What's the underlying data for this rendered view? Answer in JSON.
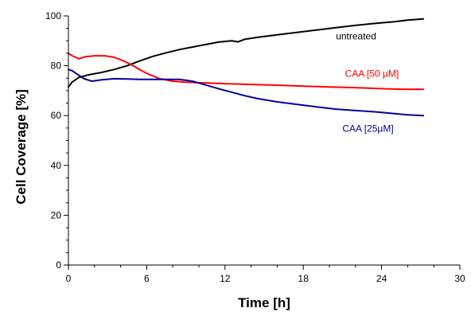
{
  "chart_data": {
    "type": "line",
    "xlabel": "Time [h]",
    "ylabel": "Cell Coverage [%]",
    "xlim": [
      0,
      30
    ],
    "ylim": [
      0,
      100
    ],
    "xticks": [
      0,
      6,
      12,
      18,
      24,
      30
    ],
    "yticks": [
      0,
      20,
      40,
      60,
      80,
      100
    ],
    "grid": false,
    "series": [
      {
        "name": "untreated",
        "color": "#000000",
        "x": [
          0,
          0.3,
          0.8,
          1.5,
          2.5,
          3.5,
          4.5,
          5.5,
          6.5,
          7.5,
          8.5,
          9.5,
          10.5,
          11.5,
          12.5,
          13.0,
          13.5,
          14.5,
          16,
          17.5,
          19,
          20.5,
          22,
          23.5,
          25,
          26,
          27.2
        ],
        "y": [
          71.5,
          73.5,
          75.3,
          76.3,
          77.3,
          78.5,
          80,
          82,
          83.8,
          85.2,
          86.5,
          87.5,
          88.5,
          89.5,
          90,
          89.6,
          90.6,
          91.4,
          92.4,
          93.4,
          94.3,
          95.3,
          96.2,
          97,
          97.7,
          98.3,
          98.8
        ]
      },
      {
        "name": "CAA [50 µM]",
        "color": "#ff0000",
        "x": [
          0,
          0.3,
          0.8,
          1.3,
          2.0,
          2.8,
          3.5,
          4.2,
          4.8,
          5.5,
          6.2,
          7,
          8,
          9,
          10,
          11,
          12,
          14,
          16,
          18,
          20,
          22,
          24,
          26,
          27.2
        ],
        "y": [
          85,
          84,
          82.8,
          83.6,
          84,
          84,
          83.4,
          82,
          80.5,
          78.3,
          76.5,
          74.8,
          73.8,
          73.4,
          73.2,
          73,
          72.8,
          72.5,
          72.2,
          71.8,
          71.5,
          71.2,
          70.8,
          70.5,
          70.5
        ]
      },
      {
        "name": "CAA [25µM]",
        "color": "#00009e",
        "x": [
          0,
          0.3,
          0.7,
          1.2,
          1.8,
          2.5,
          3.5,
          4.5,
          5.5,
          6.5,
          7.5,
          8.5,
          9.5,
          10.5,
          11.5,
          12.5,
          13.5,
          14.5,
          16,
          17.5,
          19,
          20.5,
          22,
          23.5,
          25,
          26,
          27.2
        ],
        "y": [
          78.5,
          78,
          76.5,
          74.8,
          73.8,
          74.3,
          74.8,
          74.7,
          74.5,
          74.5,
          74.5,
          74.5,
          73.8,
          72.3,
          70.8,
          69.4,
          68,
          66.8,
          65.5,
          64.5,
          63.5,
          62.6,
          62,
          61.5,
          60.8,
          60.3,
          60
        ]
      }
    ],
    "annotations": [
      {
        "text": "untreated",
        "series": 0,
        "at_x": 20.5,
        "at_y": 90.5
      },
      {
        "text": "CAA [50 µM]",
        "series": 1,
        "at_x": 21.2,
        "at_y": 75.5
      },
      {
        "text": "CAA [25µM]",
        "series": 2,
        "at_x": 21.0,
        "at_y": 53.5
      }
    ]
  }
}
